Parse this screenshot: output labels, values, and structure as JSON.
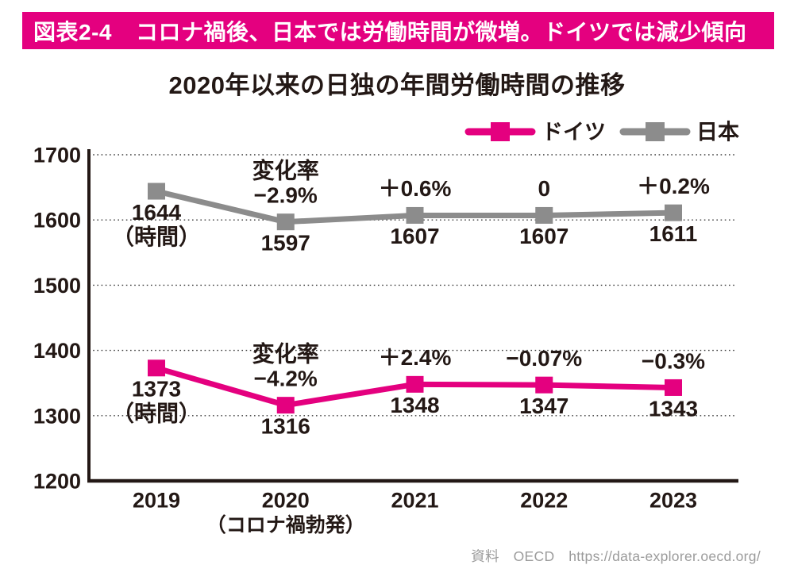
{
  "banner": {
    "label": "図表2-4",
    "title": "コロナ禍後、日本では労働時間が微増。ドイツでは減少傾向",
    "bg_color": "#e4007f",
    "text_color": "#ffffff"
  },
  "title": "2020年以来の日独の年間労働時間の推移",
  "source": {
    "text": "資料　OECD　https://data-explorer.oecd.org/"
  },
  "chart_data": {
    "type": "line",
    "title": "2020年以来の日独の年間労働時間の推移",
    "categories": [
      "2019",
      "2020",
      "2021",
      "2022",
      "2023"
    ],
    "x_sub_label": {
      "category": "2020",
      "text": "（コロナ禍勃発）"
    },
    "ylim": [
      1200,
      1700
    ],
    "yticks": [
      1200,
      1300,
      1400,
      1500,
      1600,
      1700
    ],
    "grid": "horizontal-dotted",
    "legend_position": "top-right",
    "unit": "時間",
    "series": [
      {
        "name": "ドイツ",
        "color": "#e4007f",
        "values": [
          1373,
          1316,
          1348,
          1347,
          1343
        ],
        "point_labels": [
          "1373\n（時間）",
          "1316",
          "1348",
          "1347",
          "1343"
        ],
        "change_labels": [
          "",
          "変化率\n−4.2%",
          "＋2.4%",
          "−0.07%",
          "−0.3%"
        ]
      },
      {
        "name": "日本",
        "color": "#8c8c8c",
        "values": [
          1644,
          1597,
          1607,
          1607,
          1611
        ],
        "point_labels": [
          "1644\n（時間）",
          "1597",
          "1607",
          "1607",
          "1611"
        ],
        "change_labels": [
          "",
          "変化率\n−2.9%",
          "＋0.6%",
          "0",
          "＋0.2%"
        ]
      }
    ]
  }
}
